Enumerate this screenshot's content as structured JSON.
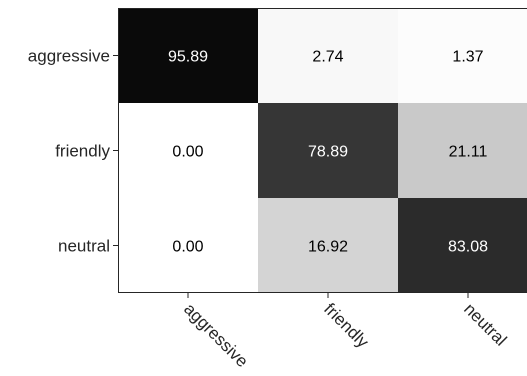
{
  "chart_data": {
    "type": "heatmap",
    "title": "",
    "xlabel": "",
    "ylabel": "",
    "x_categories": [
      "aggressive",
      "friendly",
      "neutral"
    ],
    "y_categories": [
      "aggressive",
      "friendly",
      "neutral"
    ],
    "values": [
      [
        95.89,
        2.74,
        1.37
      ],
      [
        0.0,
        78.89,
        21.11
      ],
      [
        0.0,
        16.92,
        83.08
      ]
    ],
    "cell_labels": [
      [
        "95.89",
        "2.74",
        "1.37"
      ],
      [
        "0.00",
        "78.89",
        "21.11"
      ],
      [
        "0.00",
        "16.92",
        "83.08"
      ]
    ],
    "colormap": "grayscale, high values dark",
    "grid": false,
    "legend": "none"
  }
}
